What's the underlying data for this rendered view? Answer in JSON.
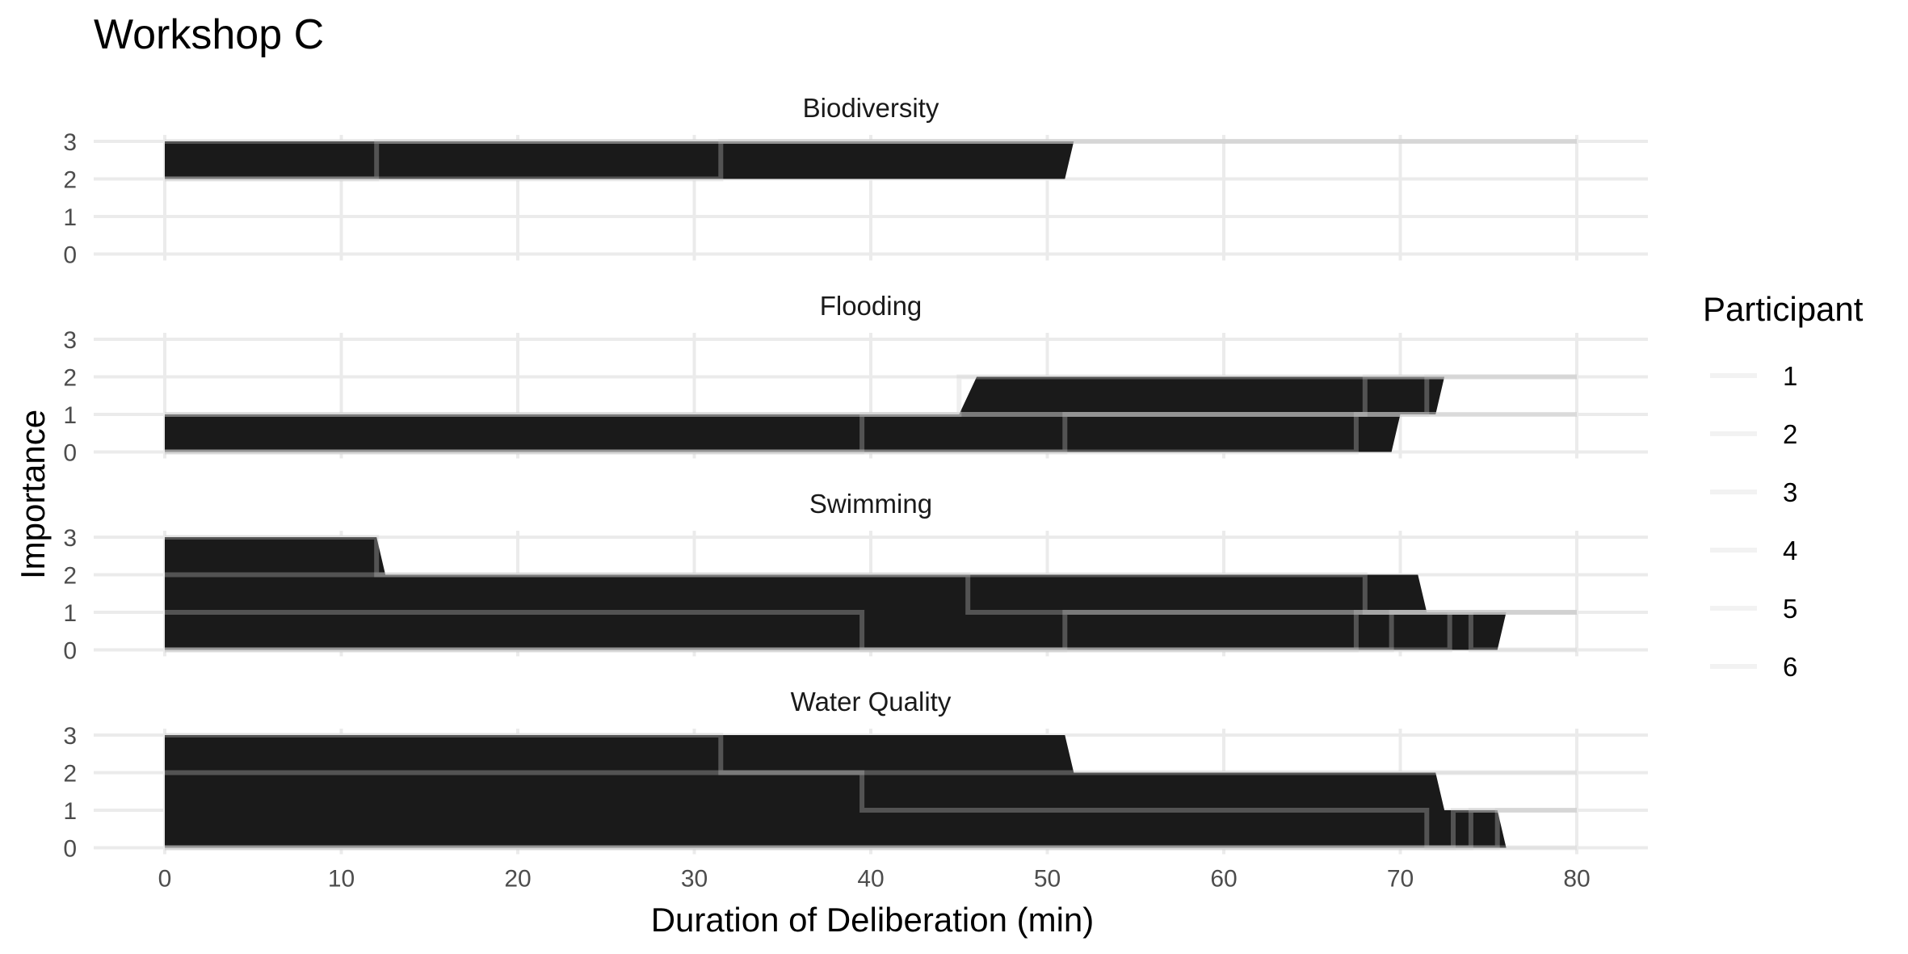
{
  "chart_data": {
    "type": "area",
    "title": "Workshop C",
    "xlabel": "Duration of Deliberation (min)",
    "ylabel": "Importance",
    "xlim": [
      0,
      80
    ],
    "ylim": [
      0,
      3
    ],
    "x_ticks": [
      0,
      10,
      20,
      30,
      40,
      50,
      60,
      70,
      80
    ],
    "y_ticks": [
      0,
      1,
      2,
      3
    ],
    "grid": true,
    "legend": {
      "title": "Participant",
      "position": "right",
      "entries": [
        "1",
        "2",
        "3",
        "4",
        "5",
        "6"
      ]
    },
    "fill_color": "#1a1a1a",
    "line_color": "#cccccc",
    "panels": [
      {
        "name": "Biodiversity",
        "area": [
          [
            0,
            3
          ],
          [
            51.5,
            3
          ],
          [
            51,
            2
          ],
          [
            0,
            2
          ]
        ],
        "steps": [
          [
            [
              0,
              3
            ],
            [
              80,
              3
            ]
          ],
          [
            [
              0,
              2
            ],
            [
              12,
              2
            ],
            [
              12,
              3
            ],
            [
              80,
              3
            ]
          ],
          [
            [
              0,
              2
            ],
            [
              31.5,
              2
            ],
            [
              31.5,
              3
            ],
            [
              80,
              3
            ]
          ]
        ]
      },
      {
        "name": "Flooding",
        "area": [
          [
            0,
            1
          ],
          [
            45,
            1
          ],
          [
            46,
            2
          ],
          [
            72.5,
            2
          ],
          [
            72,
            1
          ],
          [
            70,
            1
          ],
          [
            69.5,
            0
          ],
          [
            0,
            0
          ]
        ],
        "steps": [
          [
            [
              0,
              1
            ],
            [
              45,
              1
            ],
            [
              45,
              2
            ],
            [
              80,
              2
            ]
          ],
          [
            [
              0,
              1
            ],
            [
              68,
              1
            ],
            [
              68,
              2
            ],
            [
              80,
              2
            ]
          ],
          [
            [
              0,
              0
            ],
            [
              39.5,
              0
            ],
            [
              39.5,
              1
            ],
            [
              71.5,
              1
            ],
            [
              71.5,
              2
            ],
            [
              80,
              2
            ]
          ],
          [
            [
              0,
              0
            ],
            [
              51,
              0
            ],
            [
              51,
              1
            ],
            [
              80,
              1
            ]
          ],
          [
            [
              0,
              0
            ],
            [
              67.5,
              0
            ],
            [
              67.5,
              1
            ],
            [
              80,
              1
            ]
          ]
        ]
      },
      {
        "name": "Swimming",
        "area": [
          [
            0,
            3
          ],
          [
            12,
            3
          ],
          [
            12.5,
            2
          ],
          [
            71,
            2
          ],
          [
            71.5,
            1
          ],
          [
            76,
            1
          ],
          [
            75.5,
            0
          ],
          [
            0,
            0
          ]
        ],
        "steps": [
          [
            [
              0,
              3
            ],
            [
              12,
              3
            ],
            [
              12,
              2
            ],
            [
              68,
              2
            ],
            [
              68,
              1
            ],
            [
              80,
              1
            ]
          ],
          [
            [
              0,
              2
            ],
            [
              45.5,
              2
            ],
            [
              45.5,
              1
            ],
            [
              80,
              1
            ]
          ],
          [
            [
              0,
              1
            ],
            [
              39.5,
              1
            ],
            [
              39.5,
              0
            ],
            [
              72.8,
              0
            ],
            [
              72.8,
              1
            ],
            [
              80,
              1
            ]
          ],
          [
            [
              0,
              0
            ],
            [
              51,
              0
            ],
            [
              51,
              1
            ],
            [
              80,
              1
            ]
          ],
          [
            [
              0,
              0
            ],
            [
              67.5,
              0
            ],
            [
              67.5,
              1
            ],
            [
              80,
              1
            ]
          ],
          [
            [
              0,
              0
            ],
            [
              69.5,
              0
            ],
            [
              69.5,
              1
            ],
            [
              74,
              1
            ],
            [
              74,
              0
            ],
            [
              80,
              0
            ]
          ]
        ]
      },
      {
        "name": "Water Quality",
        "area": [
          [
            0,
            3
          ],
          [
            51,
            3
          ],
          [
            51.5,
            2
          ],
          [
            72,
            2
          ],
          [
            72.5,
            1
          ],
          [
            75.5,
            1
          ],
          [
            76,
            0
          ],
          [
            0,
            0
          ]
        ],
        "steps": [
          [
            [
              0,
              3
            ],
            [
              31.5,
              3
            ],
            [
              31.5,
              2
            ],
            [
              80,
              2
            ]
          ],
          [
            [
              0,
              2
            ],
            [
              39.5,
              2
            ],
            [
              39.5,
              1
            ],
            [
              71.5,
              1
            ],
            [
              71.5,
              0
            ],
            [
              80,
              0
            ]
          ],
          [
            [
              0,
              0
            ],
            [
              73,
              0
            ],
            [
              73,
              1
            ],
            [
              80,
              1
            ]
          ],
          [
            [
              0,
              0
            ],
            [
              74,
              0
            ],
            [
              74,
              1
            ],
            [
              80,
              1
            ]
          ],
          [
            [
              0,
              0
            ],
            [
              75.5,
              0
            ],
            [
              75.5,
              1
            ],
            [
              80,
              1
            ]
          ]
        ]
      }
    ]
  }
}
